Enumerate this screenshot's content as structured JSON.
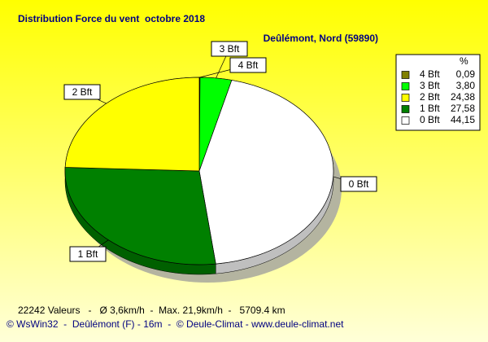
{
  "chart_data": {
    "type": "pie",
    "title": "Distribution Force du vent  octobre 2018",
    "subtitle": "Deûlémont, Nord (59890)",
    "legend_header": "%",
    "categories": [
      "4 Bft",
      "3 Bft",
      "2 Bft",
      "1 Bft",
      "0 Bft"
    ],
    "values": [
      0.09,
      3.8,
      24.38,
      27.58,
      44.15
    ],
    "value_labels": [
      "0,09",
      "3,80",
      "24,38",
      "27,58",
      "44,15"
    ],
    "colors": [
      "#808000",
      "#00ff00",
      "#ffff00",
      "#008000",
      "#ffffff"
    ],
    "footer": "22242 Valeurs   -   Ø 3,6km/h  -  Max. 21,9km/h  -   5709.4 km",
    "credits": "© WsWin32  -  Deûlémont (F) - 16m  -  © Deule-Climat - www.deule-climat.net"
  }
}
